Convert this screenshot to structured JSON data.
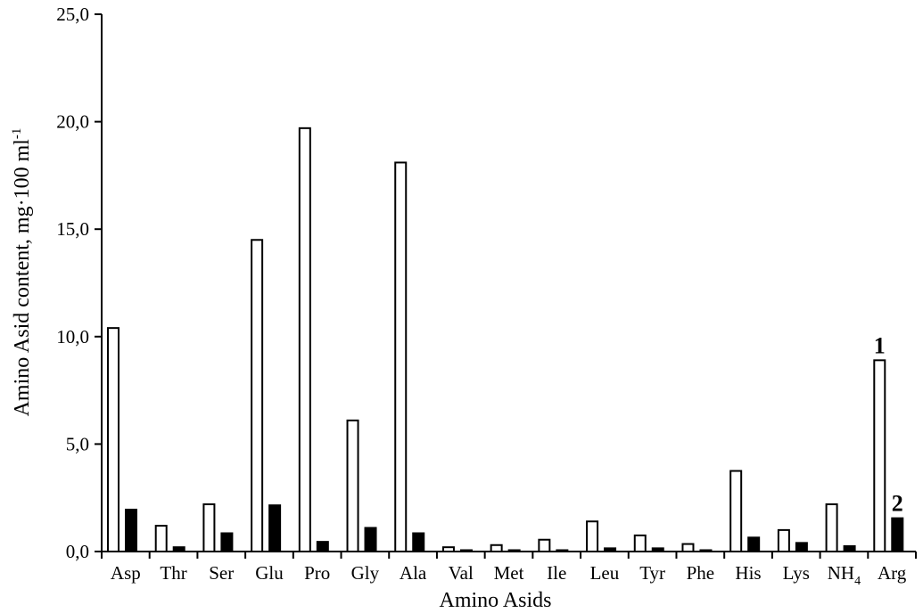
{
  "chart_data": {
    "type": "bar",
    "xlabel": "Amino Asids",
    "ylabel_main": "Amino Asid content, mg·100 ml",
    "ylabel_sup": "-1",
    "ylim": [
      0,
      25
    ],
    "yticks": [
      "0,0",
      "5,0",
      "10,0",
      "15,0",
      "20,0",
      "25,0"
    ],
    "grid": false,
    "categories": [
      "Asp",
      "Thr",
      "Ser",
      "Glu",
      "Pro",
      "Gly",
      "Ala",
      "Val",
      "Met",
      "Ile",
      "Leu",
      "Tyr",
      "Phe",
      "His",
      "Lys",
      "NH4",
      "Arg"
    ],
    "category_display": [
      {
        "base": "Asp",
        "sub": ""
      },
      {
        "base": "Thr",
        "sub": ""
      },
      {
        "base": "Ser",
        "sub": ""
      },
      {
        "base": "Glu",
        "sub": ""
      },
      {
        "base": "Pro",
        "sub": ""
      },
      {
        "base": "Gly",
        "sub": ""
      },
      {
        "base": "Ala",
        "sub": ""
      },
      {
        "base": "Val",
        "sub": ""
      },
      {
        "base": "Met",
        "sub": ""
      },
      {
        "base": "Ile",
        "sub": ""
      },
      {
        "base": "Leu",
        "sub": ""
      },
      {
        "base": "Tyr",
        "sub": ""
      },
      {
        "base": "Phe",
        "sub": ""
      },
      {
        "base": "His",
        "sub": ""
      },
      {
        "base": "Lys",
        "sub": ""
      },
      {
        "base": "NH",
        "sub": "4"
      },
      {
        "base": "Arg",
        "sub": ""
      }
    ],
    "series": [
      {
        "label": "1",
        "fill": "#ffffff",
        "stroke": "#000000",
        "values": [
          10.4,
          1.2,
          2.2,
          14.5,
          19.7,
          6.1,
          18.1,
          0.2,
          0.3,
          0.55,
          1.4,
          0.75,
          0.35,
          3.75,
          1.0,
          2.2,
          8.9
        ]
      },
      {
        "label": "2",
        "fill": "#000000",
        "stroke": "#000000",
        "values": [
          1.95,
          0.2,
          0.85,
          2.15,
          0.45,
          1.1,
          0.85,
          0.05,
          0.05,
          0.05,
          0.15,
          0.15,
          0.05,
          0.65,
          0.4,
          0.25,
          1.55
        ]
      }
    ]
  }
}
